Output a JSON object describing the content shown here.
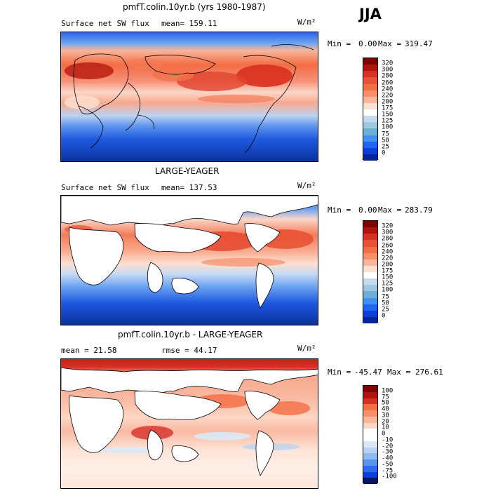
{
  "season": "JJA",
  "panels": [
    {
      "title": "pmfT.colin.10yr.b (yrs 1980-1987)",
      "left_label": "Surface net SW flux",
      "stat_label": "mean= 159.11",
      "units": "W/m²",
      "min_label": "Min =",
      "min_value": "0.00",
      "max_label": "Max =",
      "max_value": "319.47",
      "colorbar_labels": [
        "320",
        "300",
        "280",
        "260",
        "240",
        "220",
        "200",
        "175",
        "150",
        "125",
        "100",
        "75",
        "50",
        "25",
        "0"
      ],
      "land_white": false
    },
    {
      "title": "LARGE-YEAGER",
      "left_label": "Surface net SW flux",
      "stat_label": "mean= 137.53",
      "units": "W/m²",
      "min_label": "Min =",
      "min_value": "0.00",
      "max_label": "Max =",
      "max_value": "283.79",
      "colorbar_labels": [
        "320",
        "300",
        "280",
        "260",
        "240",
        "220",
        "200",
        "175",
        "150",
        "125",
        "100",
        "75",
        "50",
        "25",
        "0"
      ],
      "land_white": true
    },
    {
      "title": "pmfT.colin.10yr.b - LARGE-YEAGER",
      "left_label": "mean =  21.58",
      "stat_label": "rmse =  44.17",
      "units": "W/m²",
      "min_label": "Min =",
      "min_value": "-45.47",
      "max_label": "Max =",
      "max_value": "276.61",
      "colorbar_labels": [
        "100",
        "75",
        "50",
        "40",
        "30",
        "20",
        "10",
        "0",
        "-10",
        "-20",
        "-30",
        "-40",
        "-50",
        "-75",
        "-100"
      ],
      "land_white": true
    }
  ],
  "colors": {
    "abs_scale": [
      "#7f0000",
      "#b2140c",
      "#d73027",
      "#e8543a",
      "#f46d43",
      "#f88e6a",
      "#fcb59b",
      "#fde0d0",
      "#ffffff",
      "#c6dbef",
      "#9ecae1",
      "#6baed6",
      "#4292f6",
      "#2166f2",
      "#0b3fd9",
      "#08259b"
    ],
    "diff_scale": [
      "#7f0000",
      "#b2140c",
      "#d73027",
      "#f46d43",
      "#f88e6a",
      "#fcb59b",
      "#fdd6c4",
      "#ffffff",
      "#ffffff",
      "#dbe9f6",
      "#b8d4f0",
      "#8fbaf0",
      "#5a95f0",
      "#2e6bef",
      "#0b3fd9",
      "#08155e"
    ]
  }
}
